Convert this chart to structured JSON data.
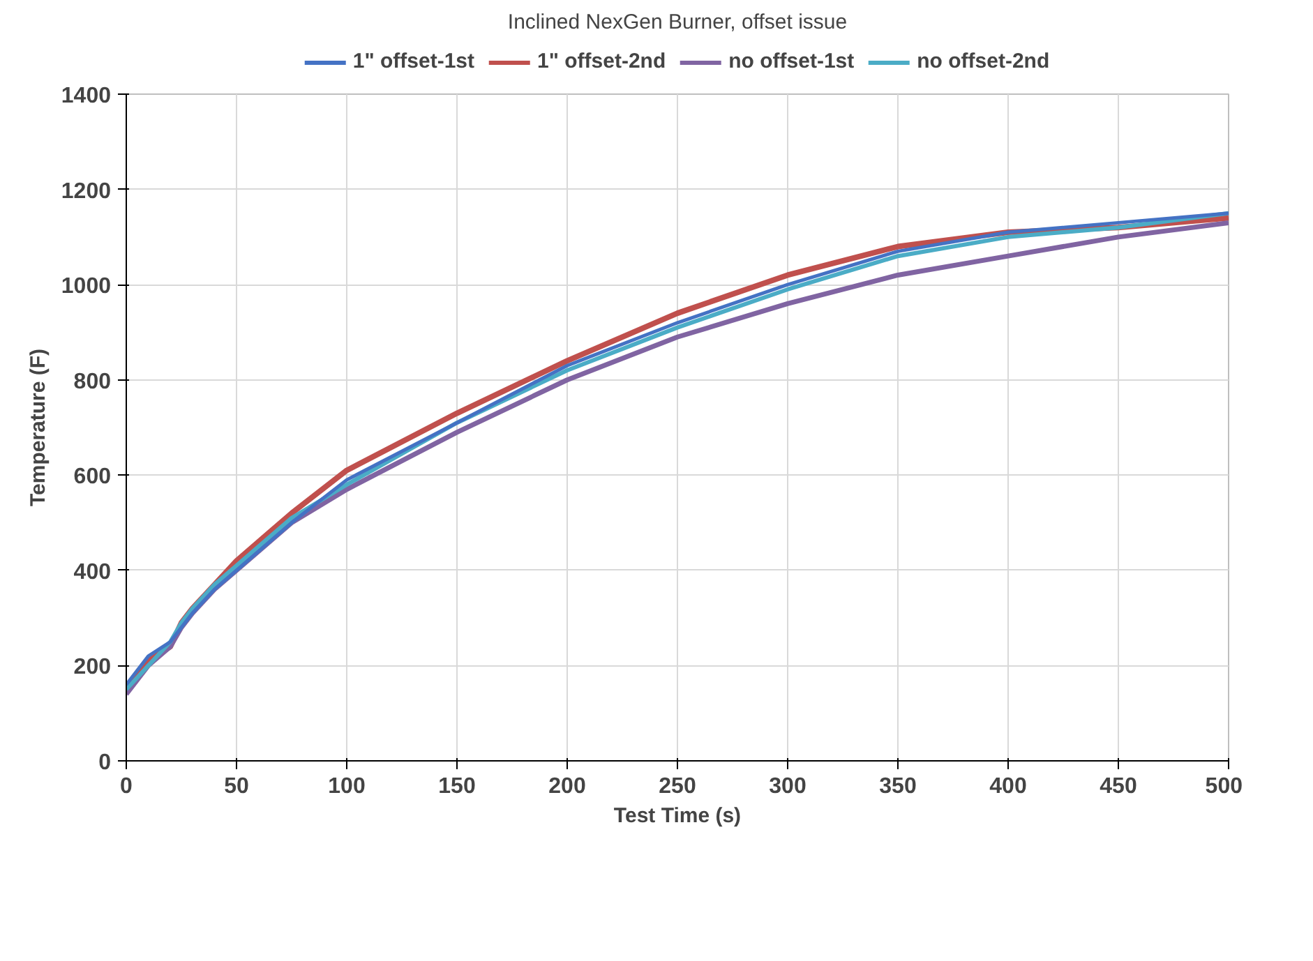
{
  "chart_data": {
    "type": "line",
    "title": "Inclined NexGen Burner, offset issue",
    "xlabel": "Test Time (s)",
    "ylabel": "Temperature (F)",
    "x": [
      0,
      10,
      20,
      25,
      30,
      40,
      50,
      75,
      100,
      150,
      200,
      250,
      300,
      350,
      400,
      450,
      500
    ],
    "series": [
      {
        "name": "1\" offset-1st",
        "color": "#4472c4",
        "values": [
          160,
          220,
          250,
          280,
          310,
          360,
          400,
          500,
          590,
          710,
          830,
          920,
          1000,
          1070,
          1110,
          1130,
          1150
        ]
      },
      {
        "name": "1\" offset-2nd",
        "color": "#c0504d",
        "values": [
          150,
          210,
          240,
          290,
          320,
          370,
          420,
          520,
          610,
          730,
          840,
          940,
          1020,
          1080,
          1110,
          1120,
          1140
        ]
      },
      {
        "name": "no offset-1st",
        "color": "#8064a2",
        "values": [
          140,
          200,
          240,
          280,
          310,
          360,
          400,
          500,
          570,
          690,
          800,
          890,
          960,
          1020,
          1060,
          1100,
          1130
        ]
      },
      {
        "name": "no offset-2nd",
        "color": "#4bacc6",
        "values": [
          150,
          200,
          250,
          290,
          320,
          370,
          410,
          510,
          580,
          710,
          820,
          910,
          990,
          1060,
          1100,
          1120,
          1150
        ]
      }
    ],
    "xlim": [
      0,
      500
    ],
    "xticks": [
      0,
      50,
      100,
      150,
      200,
      250,
      300,
      350,
      400,
      450,
      500
    ],
    "ylim": [
      0,
      1400
    ],
    "yticks": [
      0,
      200,
      400,
      600,
      800,
      1000,
      1200,
      1400
    ],
    "grid": true,
    "legend": "top",
    "marker": "none",
    "line_style": "solid"
  }
}
